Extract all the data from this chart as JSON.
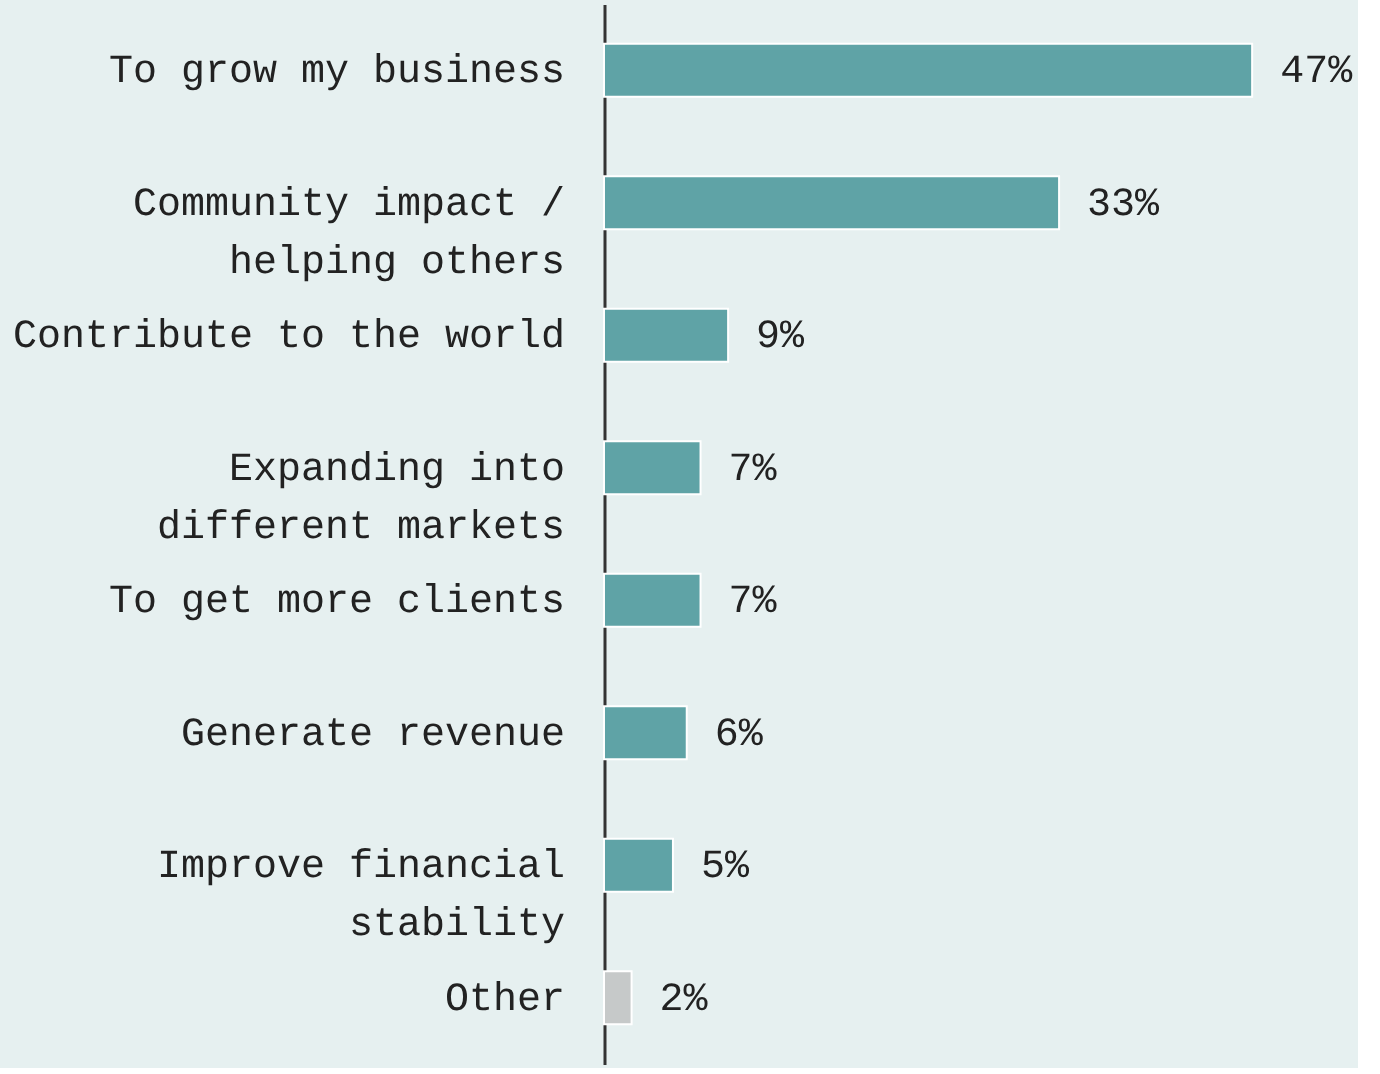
{
  "chart_data": {
    "type": "bar",
    "orientation": "horizontal",
    "categories": [
      "To grow my business",
      "Community impact /\nhelping others",
      "Contribute to the world",
      "Expanding into\ndifferent markets",
      "To get more clients",
      "Generate revenue",
      "Improve financial\nstability",
      "Other"
    ],
    "values": [
      47,
      33,
      9,
      7,
      7,
      6,
      5,
      2
    ],
    "colors": [
      "#5fa3a6",
      "#5fa3a6",
      "#5fa3a6",
      "#5fa3a6",
      "#5fa3a6",
      "#5fa3a6",
      "#5fa3a6",
      "#c6c9c9"
    ],
    "value_labels": [
      "47%",
      "33%",
      "9%",
      "7%",
      "7%",
      "6%",
      "5%",
      "2%"
    ]
  }
}
